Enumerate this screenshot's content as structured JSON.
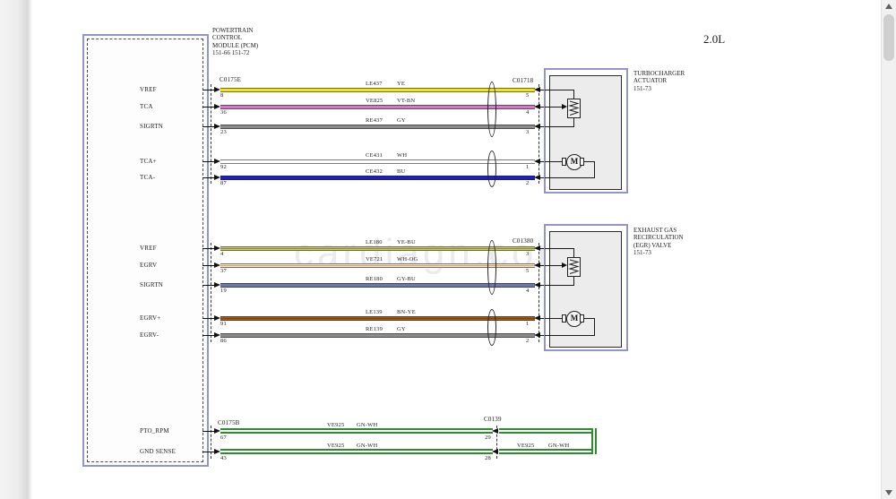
{
  "page": {
    "engine_variant": "2.0L",
    "watermark": "cardiagn.com"
  },
  "pcm": {
    "title_lines": [
      "POWERTRAIN",
      "CONTROL",
      "MODULE (PCM)",
      "151-66  151-72"
    ]
  },
  "colors": {
    "box_border": "#9295cb",
    "green_wire": "#2e8c2e"
  },
  "sections": [
    {
      "id": "turbocharger",
      "pcm_connector": "C0175E",
      "comp_connector": "C01718",
      "component_title_lines": [
        "TURBOCHARGER",
        "ACTUATOR",
        "151-73"
      ],
      "wires": [
        {
          "pcm_label": "VREF",
          "pcm_pin": "8",
          "circuit": "LE437",
          "color_code": "YE",
          "comp_pin": "5",
          "color": "#ebe41e",
          "stripe": ""
        },
        {
          "pcm_label": "TCA",
          "pcm_pin": "36",
          "circuit": "VE825",
          "color_code": "VT-BN",
          "comp_pin": "4",
          "color": "#d678c8",
          "stripe": ""
        },
        {
          "pcm_label": "SIGRTN",
          "pcm_pin": "23",
          "circuit": "RE437",
          "color_code": "GY",
          "comp_pin": "3",
          "color": "#8c8c8c",
          "stripe": ""
        },
        {
          "pcm_label": "TCA+",
          "pcm_pin": "92",
          "circuit": "CE431",
          "color_code": "WH",
          "comp_pin": "1",
          "color": "#ffffff",
          "stripe": ""
        },
        {
          "pcm_label": "TCA-",
          "pcm_pin": "87",
          "circuit": "CE432",
          "color_code": "BU",
          "comp_pin": "2",
          "color": "#1d1dcf",
          "stripe": ""
        }
      ]
    },
    {
      "id": "egr-valve",
      "pcm_connector": "",
      "comp_connector": "C01380",
      "component_title_lines": [
        "EXHAUST GAS",
        "RECIRCULATION",
        "(EGR) VALVE",
        "151-73"
      ],
      "wires": [
        {
          "pcm_label": "VREF",
          "pcm_pin": "4",
          "circuit": "LE180",
          "color_code": "YE-BU",
          "comp_pin": "3",
          "color": "#d2d44a",
          "stripe": "#7a7ca0"
        },
        {
          "pcm_label": "EGRV",
          "pcm_pin": "37",
          "circuit": "VE721",
          "color_code": "WH-OG",
          "comp_pin": "5",
          "color": "#f4e7cb",
          "stripe": "#e2a465"
        },
        {
          "pcm_label": "SIGRTN",
          "pcm_pin": "19",
          "circuit": "RE180",
          "color_code": "GY-BU",
          "comp_pin": "4",
          "color": "#6e77a9",
          "stripe": ""
        },
        {
          "pcm_label": "EGRV+",
          "pcm_pin": "91",
          "circuit": "LE139",
          "color_code": "BN-YE",
          "comp_pin": "1",
          "color": "#a65e1a",
          "stripe": "#7a4210"
        },
        {
          "pcm_label": "EGRV-",
          "pcm_pin": "86",
          "circuit": "RE139",
          "color_code": "GY",
          "comp_pin": "2",
          "color": "#8c8c8c",
          "stripe": ""
        }
      ]
    },
    {
      "id": "pto-loop",
      "pcm_connector": "C0175B",
      "inline_connector": "C0139",
      "loop_label": {
        "circuit": "VE925",
        "color_code": "GN-WH"
      },
      "wires": [
        {
          "pcm_label": "PTO_RPM",
          "pcm_pin": "67",
          "circuit": "VE925",
          "color_code": "GN-WH",
          "comp_pin": "29"
        },
        {
          "pcm_label": "GND SENSE",
          "pcm_pin": "43",
          "circuit": "VE925",
          "color_code": "GN-WH",
          "comp_pin": "28"
        }
      ]
    }
  ]
}
